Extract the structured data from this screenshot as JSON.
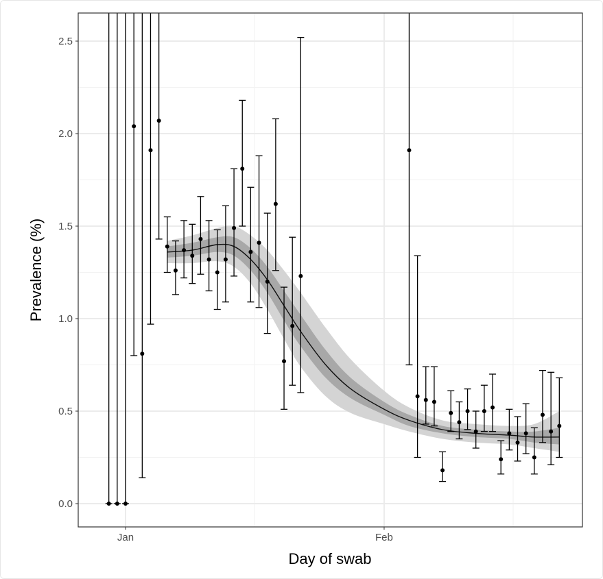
{
  "chart_data": {
    "type": "scatter",
    "xlabel": "Day of swab",
    "ylabel": "Prevalence (%)",
    "ylim": [
      -0.12,
      2.62
    ],
    "xlim": [
      "Dec 28",
      "Feb 24"
    ],
    "x_ticks": [
      "Jan",
      "Feb"
    ],
    "y_ticks": [
      "0.0",
      "0.5",
      "1.0",
      "1.5",
      "2.0",
      "2.5"
    ],
    "grid": true,
    "point_color": "#000000",
    "band_outer_color": "#d4d4d4",
    "band_inner_color": "#a8a8a8",
    "series": [
      {
        "kind": "points-with-error-bars",
        "points": [
          {
            "x": "Dec 30",
            "y": 0.0,
            "lo": 0.0,
            "hi": null
          },
          {
            "x": "Dec 31",
            "y": 0.0,
            "lo": 0.0,
            "hi": null
          },
          {
            "x": "Jan 1",
            "y": 0.0,
            "lo": 0.0,
            "hi": null
          },
          {
            "x": "Jan 2",
            "y": 2.04,
            "lo": 0.8,
            "hi": null
          },
          {
            "x": "Jan 3",
            "y": 0.81,
            "lo": 0.14,
            "hi": null
          },
          {
            "x": "Jan 4",
            "y": 1.91,
            "lo": 0.97,
            "hi": null
          },
          {
            "x": "Jan 5",
            "y": 2.07,
            "lo": 1.43,
            "hi": null
          },
          {
            "x": "Jan 6",
            "y": 1.39,
            "lo": 1.25,
            "hi": 1.55
          },
          {
            "x": "Jan 7",
            "y": 1.26,
            "lo": 1.13,
            "hi": 1.42
          },
          {
            "x": "Jan 8",
            "y": 1.37,
            "lo": 1.22,
            "hi": 1.53
          },
          {
            "x": "Jan 9",
            "y": 1.34,
            "lo": 1.19,
            "hi": 1.51
          },
          {
            "x": "Jan 10",
            "y": 1.43,
            "lo": 1.24,
            "hi": 1.66
          },
          {
            "x": "Jan 11",
            "y": 1.32,
            "lo": 1.15,
            "hi": 1.53
          },
          {
            "x": "Jan 12",
            "y": 1.25,
            "lo": 1.05,
            "hi": 1.48
          },
          {
            "x": "Jan 13",
            "y": 1.32,
            "lo": 1.09,
            "hi": 1.61
          },
          {
            "x": "Jan 14",
            "y": 1.49,
            "lo": 1.23,
            "hi": 1.81
          },
          {
            "x": "Jan 15",
            "y": 1.81,
            "lo": 1.5,
            "hi": 2.18
          },
          {
            "x": "Jan 16",
            "y": 1.36,
            "lo": 1.09,
            "hi": 1.71
          },
          {
            "x": "Jan 17",
            "y": 1.41,
            "lo": 1.06,
            "hi": 1.88
          },
          {
            "x": "Jan 18",
            "y": 1.2,
            "lo": 0.92,
            "hi": 1.57
          },
          {
            "x": "Jan 19",
            "y": 1.62,
            "lo": 1.26,
            "hi": 2.08
          },
          {
            "x": "Jan 20",
            "y": 0.77,
            "lo": 0.51,
            "hi": 1.17
          },
          {
            "x": "Jan 21",
            "y": 0.96,
            "lo": 0.64,
            "hi": 1.44
          },
          {
            "x": "Jan 22",
            "y": 1.23,
            "lo": 0.6,
            "hi": 2.52
          },
          {
            "x": "Feb 4",
            "y": 1.91,
            "lo": 0.75,
            "hi": null
          },
          {
            "x": "Feb 5",
            "y": 0.58,
            "lo": 0.25,
            "hi": 1.34
          },
          {
            "x": "Feb 6",
            "y": 0.56,
            "lo": 0.43,
            "hi": 0.74
          },
          {
            "x": "Feb 7",
            "y": 0.55,
            "lo": 0.42,
            "hi": 0.74
          },
          {
            "x": "Feb 8",
            "y": 0.18,
            "lo": 0.12,
            "hi": 0.28
          },
          {
            "x": "Feb 9",
            "y": 0.49,
            "lo": 0.39,
            "hi": 0.61
          },
          {
            "x": "Feb 10",
            "y": 0.44,
            "lo": 0.35,
            "hi": 0.55
          },
          {
            "x": "Feb 11",
            "y": 0.5,
            "lo": 0.4,
            "hi": 0.62
          },
          {
            "x": "Feb 12",
            "y": 0.39,
            "lo": 0.3,
            "hi": 0.5
          },
          {
            "x": "Feb 13",
            "y": 0.5,
            "lo": 0.39,
            "hi": 0.64
          },
          {
            "x": "Feb 14",
            "y": 0.52,
            "lo": 0.39,
            "hi": 0.7
          },
          {
            "x": "Feb 15",
            "y": 0.24,
            "lo": 0.16,
            "hi": 0.34
          },
          {
            "x": "Feb 16",
            "y": 0.38,
            "lo": 0.29,
            "hi": 0.51
          },
          {
            "x": "Feb 17",
            "y": 0.33,
            "lo": 0.23,
            "hi": 0.47
          },
          {
            "x": "Feb 18",
            "y": 0.38,
            "lo": 0.27,
            "hi": 0.54
          },
          {
            "x": "Feb 19",
            "y": 0.25,
            "lo": 0.16,
            "hi": 0.41
          },
          {
            "x": "Feb 20",
            "y": 0.48,
            "lo": 0.33,
            "hi": 0.72
          },
          {
            "x": "Feb 21",
            "y": 0.39,
            "lo": 0.21,
            "hi": 0.71
          },
          {
            "x": "Feb 22",
            "y": 0.42,
            "lo": 0.25,
            "hi": 0.68
          }
        ]
      },
      {
        "kind": "smooth-fit",
        "points": [
          {
            "x": "Jan 6",
            "y": 1.36,
            "in_lo": 1.33,
            "in_hi": 1.39,
            "out_lo": 1.3,
            "out_hi": 1.42
          },
          {
            "x": "Jan 9",
            "y": 1.37,
            "in_lo": 1.34,
            "in_hi": 1.41,
            "out_lo": 1.3,
            "out_hi": 1.45
          },
          {
            "x": "Jan 12",
            "y": 1.4,
            "in_lo": 1.36,
            "in_hi": 1.44,
            "out_lo": 1.31,
            "out_hi": 1.49
          },
          {
            "x": "Jan 14",
            "y": 1.39,
            "in_lo": 1.34,
            "in_hi": 1.44,
            "out_lo": 1.28,
            "out_hi": 1.5
          },
          {
            "x": "Jan 16",
            "y": 1.32,
            "in_lo": 1.26,
            "in_hi": 1.38,
            "out_lo": 1.19,
            "out_hi": 1.45
          },
          {
            "x": "Jan 18",
            "y": 1.21,
            "in_lo": 1.14,
            "in_hi": 1.28,
            "out_lo": 1.05,
            "out_hi": 1.37
          },
          {
            "x": "Jan 20",
            "y": 1.07,
            "in_lo": 0.99,
            "in_hi": 1.15,
            "out_lo": 0.89,
            "out_hi": 1.26
          },
          {
            "x": "Jan 22",
            "y": 0.93,
            "in_lo": 0.85,
            "in_hi": 1.02,
            "out_lo": 0.74,
            "out_hi": 1.14
          },
          {
            "x": "Jan 25",
            "y": 0.75,
            "in_lo": 0.68,
            "in_hi": 0.83,
            "out_lo": 0.58,
            "out_hi": 0.95
          },
          {
            "x": "Jan 28",
            "y": 0.62,
            "in_lo": 0.57,
            "in_hi": 0.68,
            "out_lo": 0.49,
            "out_hi": 0.78
          },
          {
            "x": "Feb 1",
            "y": 0.51,
            "in_lo": 0.48,
            "in_hi": 0.55,
            "out_lo": 0.43,
            "out_hi": 0.61
          },
          {
            "x": "Feb 4",
            "y": 0.45,
            "in_lo": 0.42,
            "in_hi": 0.48,
            "out_lo": 0.39,
            "out_hi": 0.52
          },
          {
            "x": "Feb 8",
            "y": 0.4,
            "in_lo": 0.38,
            "in_hi": 0.42,
            "out_lo": 0.35,
            "out_hi": 0.45
          },
          {
            "x": "Feb 12",
            "y": 0.38,
            "in_lo": 0.36,
            "in_hi": 0.4,
            "out_lo": 0.33,
            "out_hi": 0.43
          },
          {
            "x": "Feb 16",
            "y": 0.37,
            "in_lo": 0.35,
            "in_hi": 0.39,
            "out_lo": 0.32,
            "out_hi": 0.42
          },
          {
            "x": "Feb 19",
            "y": 0.36,
            "in_lo": 0.33,
            "in_hi": 0.39,
            "out_lo": 0.3,
            "out_hi": 0.43
          },
          {
            "x": "Feb 22",
            "y": 0.36,
            "in_lo": 0.32,
            "in_hi": 0.41,
            "out_lo": 0.28,
            "out_hi": 0.5
          }
        ]
      }
    ]
  }
}
